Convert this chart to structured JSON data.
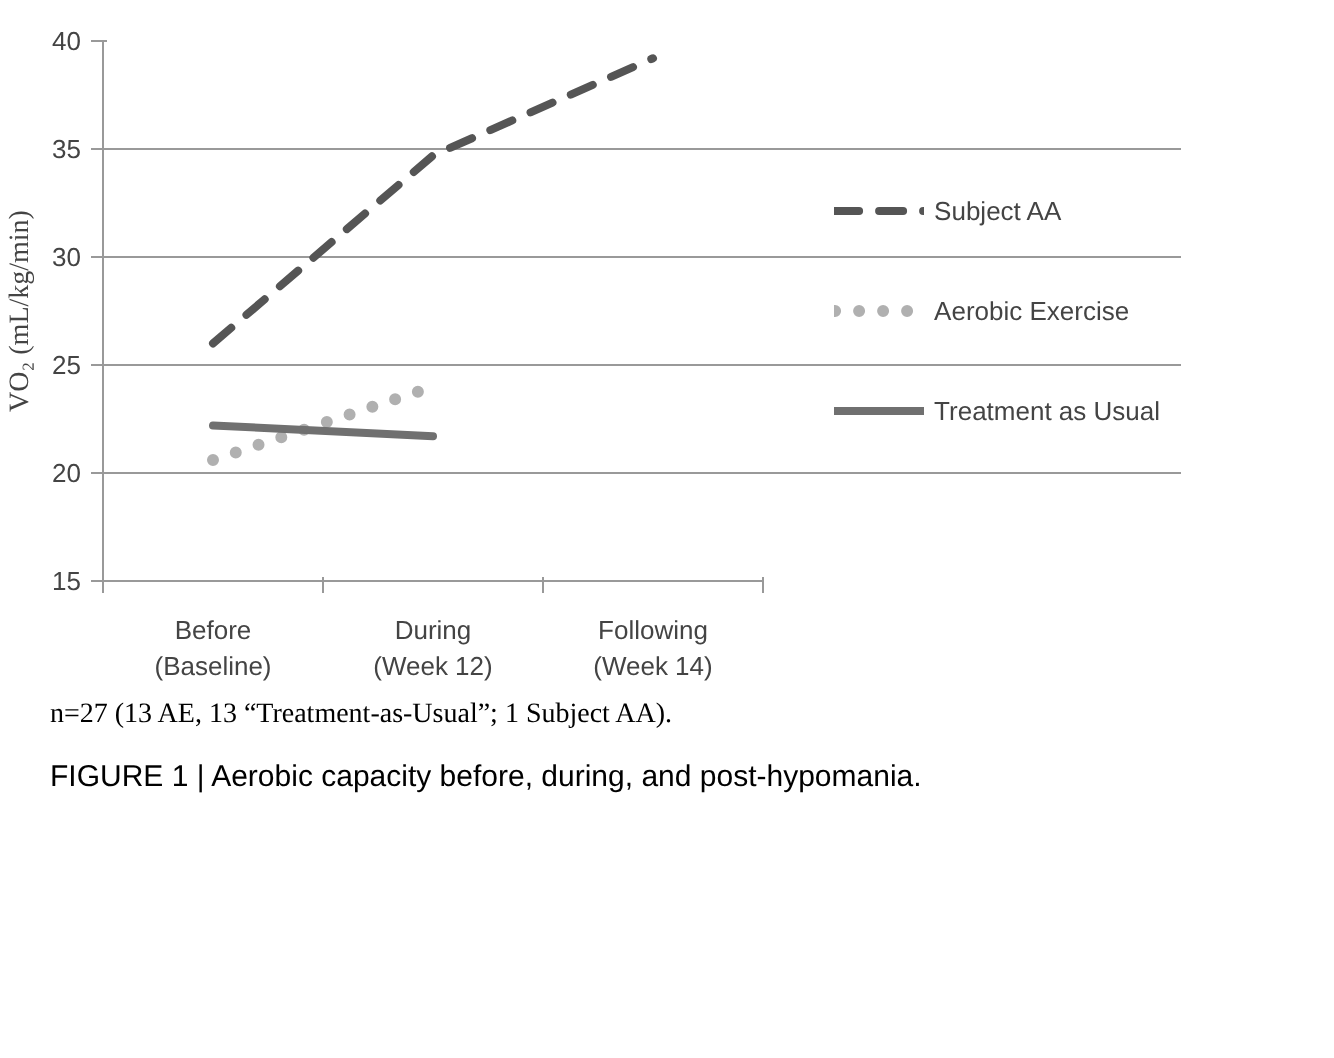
{
  "chart_data": {
    "type": "line",
    "ylabel": "VO₂ (mL/kg/min)",
    "categories": [
      "Before\n(Baseline)",
      "During\n(Week 12)",
      "Following\n(Week 14)"
    ],
    "series": [
      {
        "name": "Subject AA",
        "color": "#555555",
        "line_style": "dashed",
        "values": [
          26,
          34.7,
          39.2
        ]
      },
      {
        "name": "Aerobic Exercise",
        "color": "#b0b0b0",
        "line_style": "dotted",
        "values": [
          20.6,
          24,
          null
        ]
      },
      {
        "name": "Treatment as Usual",
        "color": "#707070",
        "line_style": "solid",
        "values": [
          22.2,
          21.7,
          null
        ]
      }
    ],
    "ylim": [
      15,
      40
    ],
    "yticks": [
      15,
      20,
      25,
      30,
      35,
      40
    ],
    "grid": "y",
    "legend": "right",
    "marker": "none",
    "annotations": [
      "n=27 (13 AE, 13 “Treatment-as-Usual”; 1 Subject AA).",
      "FIGURE 1 | Aerobic capacity before, during, and post-hypomania."
    ]
  }
}
